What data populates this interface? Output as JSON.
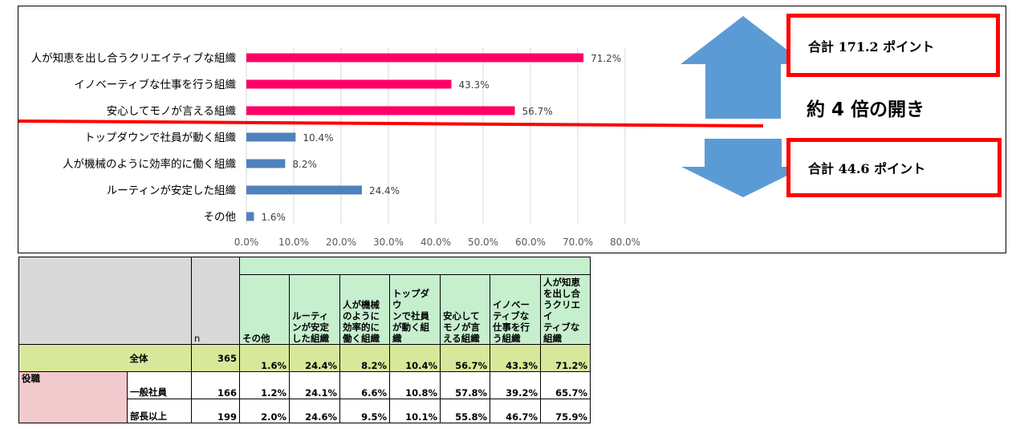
{
  "chart_data": {
    "type": "bar",
    "orientation": "horizontal",
    "categories": [
      "人が知恵を出し合うクリエイティブな組織",
      "イノベーティブな仕事を行う組織",
      "安心してモノが言える組織",
      "トップダウンで社員が動く組織",
      "人が機械のように効率的に働く組織",
      "ルーティンが安定した組織",
      "その他"
    ],
    "values": [
      71.2,
      43.3,
      56.7,
      10.4,
      8.2,
      24.4,
      1.6
    ],
    "value_labels": [
      "71.2%",
      "43.3%",
      "56.7%",
      "10.4%",
      "8.2%",
      "24.4%",
      "1.6%"
    ],
    "bar_colors": [
      "#ff0066",
      "#ff0066",
      "#ff0066",
      "#4f81bd",
      "#4f81bd",
      "#4f81bd",
      "#4f81bd"
    ],
    "xlim": [
      0,
      80
    ],
    "xticks": [
      "0.0%",
      "10.0%",
      "20.0%",
      "30.0%",
      "40.0%",
      "50.0%",
      "60.0%",
      "70.0%",
      "80.0%"
    ],
    "grid": true,
    "divider_color": "#ff0000",
    "arrow_color": "#5b9bd5"
  },
  "annotations": {
    "top_total": "合計 171.2 ポイント",
    "bottom_total": "合計 44.6 ポイント",
    "gap": "約 4 倍の開き"
  },
  "table": {
    "n_header": "n",
    "columns": [
      "その他",
      "ルーティンが安定した組織",
      "人が機械のように効率的に働く組織",
      "トップダウンで社員が動く組織",
      "安心してモノが言える組織",
      "イノベーティブな仕事を行う組織",
      "人が知恵を出し合うクリエイティブな組織"
    ],
    "column_lines": [
      [
        "その他"
      ],
      [
        "ルーティ",
        "ンが安定",
        "した組織"
      ],
      [
        "人が機械",
        "のように",
        "効率的に",
        "働く組織"
      ],
      [
        "トップダウ",
        "ンで社員",
        "が動く組",
        "織"
      ],
      [
        "安心して",
        "モノが言",
        "える組織"
      ],
      [
        "イノベー",
        "ティブな",
        "仕事を行",
        "う組織"
      ],
      [
        "人が知恵",
        "を出し合",
        "うクリエイ",
        "ティブな",
        "組織"
      ]
    ],
    "total_row": {
      "label": "全体",
      "n": "365",
      "values": [
        "1.6%",
        "24.4%",
        "8.2%",
        "10.4%",
        "56.7%",
        "43.3%",
        "71.2%"
      ]
    },
    "group_label": "役職",
    "rows": [
      {
        "label": "一般社員",
        "n": "166",
        "values": [
          "1.2%",
          "24.1%",
          "6.6%",
          "10.8%",
          "57.8%",
          "39.2%",
          "65.7%"
        ]
      },
      {
        "label": "部長以上",
        "n": "199",
        "values": [
          "2.0%",
          "24.6%",
          "9.5%",
          "10.1%",
          "55.8%",
          "46.7%",
          "75.9%"
        ]
      }
    ]
  }
}
